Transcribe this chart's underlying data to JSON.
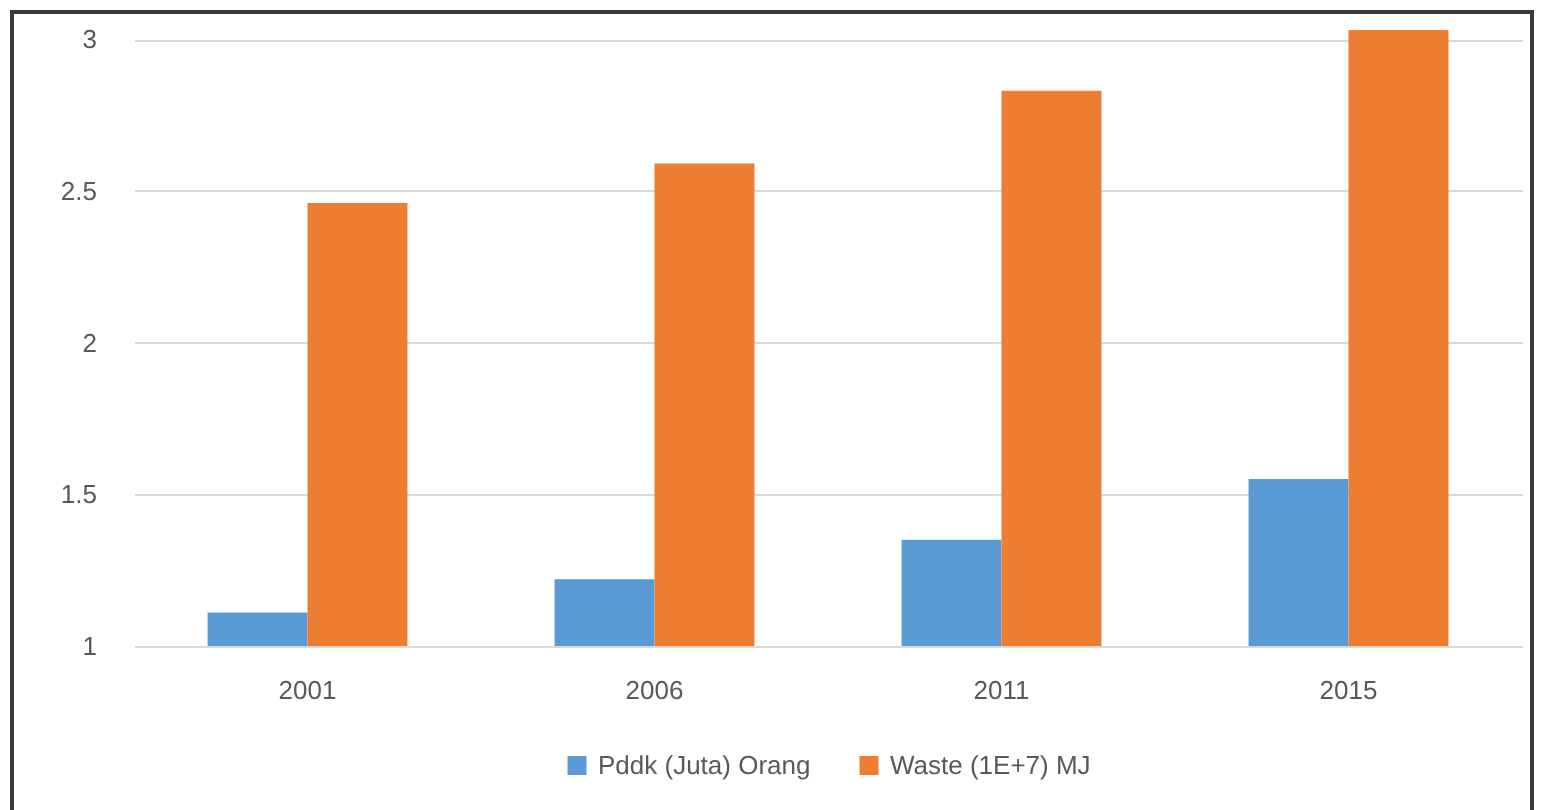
{
  "chart_data": {
    "type": "bar",
    "categories": [
      "2001",
      "2006",
      "2011",
      "2015"
    ],
    "series": [
      {
        "name": "Pddk (Juta) Orang",
        "color": "#5b9bd5",
        "values": [
          1.11,
          1.22,
          1.35,
          1.55
        ]
      },
      {
        "name": "Waste (1E+7) MJ",
        "color": "#ed7d31",
        "values": [
          2.46,
          2.59,
          2.83,
          3.03
        ]
      }
    ],
    "ylim": [
      1,
      3.05
    ],
    "yticks": [
      1,
      1.5,
      2,
      2.5,
      3
    ],
    "grid": "y",
    "legend": "bottom"
  }
}
